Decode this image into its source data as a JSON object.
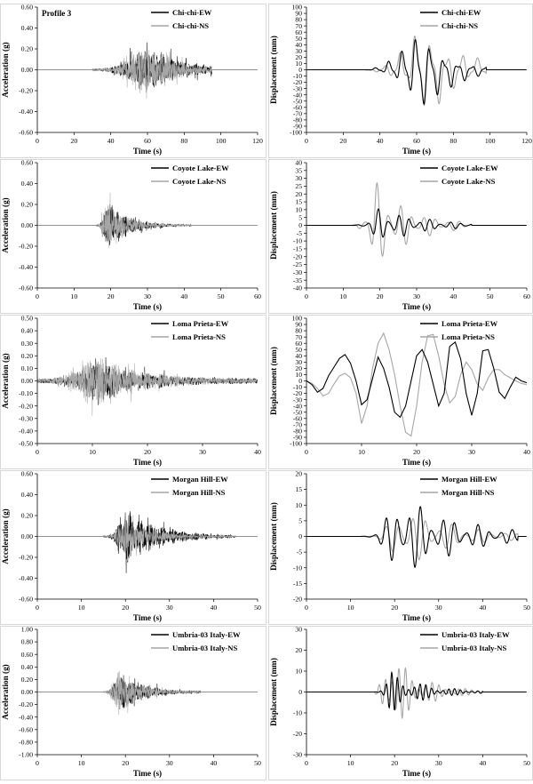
{
  "figure": {
    "panel_label": "Profile 3",
    "xlabel": "Time (s)",
    "ylabel_acc": "Acceleration (g)",
    "ylabel_disp": "Displacement (mm)",
    "colors": {
      "ew": "#000000",
      "ns": "#a6a6a6",
      "axis": "#000000",
      "frame": "#bfbfbf"
    }
  },
  "chart_data": [
    {
      "type": "line",
      "row": 0,
      "kind": "acceleration",
      "xlim": [
        0,
        120
      ],
      "xticks": [
        0,
        20,
        40,
        60,
        80,
        100,
        120
      ],
      "ylim": [
        -0.6,
        0.6
      ],
      "yticks": [
        -0.6,
        -0.4,
        -0.2,
        0.0,
        0.2,
        0.4,
        0.6
      ],
      "ytick_decimals": 2,
      "xlabel": "Time (s)",
      "ylabel": "Acceleration (g)",
      "panel_label": "Profile 3",
      "legend": "top-right",
      "series": [
        {
          "name": "Chi-chi-EW",
          "color": "#000000",
          "shape": "acc",
          "start": 30,
          "end": 95,
          "peak_time": 58,
          "rise": 16,
          "decay": 20,
          "amp": 0.44,
          "freq": 1.4,
          "noise": 0.01,
          "seed": 11
        },
        {
          "name": "Chi-chi-NS",
          "color": "#a6a6a6",
          "shape": "acc",
          "start": 30,
          "end": 95,
          "peak_time": 58,
          "rise": 14,
          "decay": 18,
          "amp": 0.48,
          "freq": 1.6,
          "noise": 0.01,
          "seed": 23
        }
      ]
    },
    {
      "type": "line",
      "row": 0,
      "kind": "displacement",
      "xlim": [
        0,
        120
      ],
      "xticks": [
        0,
        20,
        40,
        60,
        80,
        100,
        120
      ],
      "ylim": [
        -100,
        100
      ],
      "yticks": [
        -100,
        -90,
        -80,
        -70,
        -60,
        -50,
        -40,
        -30,
        -20,
        -10,
        0,
        10,
        20,
        30,
        40,
        50,
        60,
        70,
        80,
        90,
        100
      ],
      "ytick_decimals": 0,
      "xlabel": "Time (s)",
      "ylabel": "Displacement (mm)",
      "legend": "top-right",
      "series": [
        {
          "name": "Chi-chi-EW",
          "color": "#000000",
          "shape": "disp",
          "start": 30,
          "end": 98,
          "peak_time": 62,
          "rise": 18,
          "decay": 16,
          "amp": 80,
          "period": 7.5,
          "seed": 31
        },
        {
          "name": "Chi-chi-NS",
          "color": "#a6a6a6",
          "shape": "disp",
          "start": 30,
          "end": 98,
          "peak_time": 64,
          "rise": 16,
          "decay": 20,
          "amp": 82,
          "period": 8.5,
          "seed": 37
        }
      ]
    },
    {
      "type": "line",
      "row": 1,
      "kind": "acceleration",
      "xlim": [
        0,
        60
      ],
      "xticks": [
        0,
        10,
        20,
        30,
        40,
        50,
        60
      ],
      "ylim": [
        -0.6,
        0.6
      ],
      "yticks": [
        -0.6,
        -0.4,
        -0.2,
        0.0,
        0.2,
        0.4,
        0.6
      ],
      "ytick_decimals": 2,
      "xlabel": "Time (s)",
      "ylabel": "Acceleration (g)",
      "legend": "top-right",
      "series": [
        {
          "name": "Coyote Lake-EW",
          "color": "#000000",
          "shape": "acc",
          "start": 16,
          "end": 42,
          "peak_time": 19,
          "rise": 1.5,
          "decay": 6,
          "amp": 0.46,
          "freq": 3.2,
          "noise": 0.005,
          "seed": 41
        },
        {
          "name": "Coyote Lake-NS",
          "color": "#a6a6a6",
          "shape": "acc",
          "start": 16,
          "end": 42,
          "peak_time": 18.5,
          "rise": 1.4,
          "decay": 5.5,
          "amp": 0.5,
          "freq": 3.6,
          "noise": 0.005,
          "seed": 43
        }
      ]
    },
    {
      "type": "line",
      "row": 1,
      "kind": "displacement",
      "xlim": [
        0,
        60
      ],
      "xticks": [
        0,
        10,
        20,
        30,
        40,
        50,
        60
      ],
      "ylim": [
        -40,
        40
      ],
      "yticks": [
        -40,
        -35,
        -30,
        -25,
        -20,
        -15,
        -10,
        -5,
        0,
        5,
        10,
        15,
        20,
        25,
        30,
        35,
        40
      ],
      "ytick_decimals": 0,
      "xlabel": "Time (s)",
      "ylabel": "Displacement (mm)",
      "legend": "top-right",
      "series": [
        {
          "name": "Coyote Lake-EW",
          "color": "#000000",
          "shape": "disp",
          "start": 12,
          "end": 45,
          "peak_time": 20,
          "rise": 3,
          "decay": 12,
          "amp": 12,
          "period": 2.8,
          "seed": 47
        },
        {
          "name": "Coyote Lake-NS",
          "color": "#a6a6a6",
          "shape": "disp",
          "start": 12,
          "end": 45,
          "peak_time": 18.5,
          "rise": 2.5,
          "decay": 10,
          "amp": 30,
          "period": 3.2,
          "seed": 53
        }
      ]
    },
    {
      "type": "line",
      "row": 2,
      "kind": "acceleration",
      "xlim": [
        0,
        40
      ],
      "xticks": [
        0,
        10,
        20,
        30,
        40
      ],
      "ylim": [
        -0.5,
        0.5
      ],
      "yticks": [
        -0.5,
        -0.4,
        -0.3,
        -0.2,
        -0.1,
        0.0,
        0.1,
        0.2,
        0.3,
        0.4,
        0.5
      ],
      "ytick_decimals": 2,
      "xlabel": "Time (s)",
      "ylabel": "Acceleration (g)",
      "legend": "top-right",
      "series": [
        {
          "name": "Loma Prieta-EW",
          "color": "#000000",
          "shape": "acc",
          "start": 0,
          "end": 40,
          "peak_time": 11,
          "rise": 3.5,
          "decay": 9,
          "amp": 0.3,
          "freq": 2.0,
          "noise": 0.018,
          "seed": 59
        },
        {
          "name": "Loma Prieta-NS",
          "color": "#a6a6a6",
          "shape": "acc",
          "start": 0,
          "end": 40,
          "peak_time": 10,
          "rise": 3.0,
          "decay": 8,
          "amp": 0.42,
          "freq": 2.3,
          "noise": 0.018,
          "seed": 61
        }
      ]
    },
    {
      "type": "line",
      "row": 2,
      "kind": "displacement",
      "xlim": [
        0,
        40
      ],
      "xticks": [
        0,
        10,
        20,
        30,
        40
      ],
      "ylim": [
        -100,
        100
      ],
      "yticks": [
        -100,
        -90,
        -80,
        -70,
        -60,
        -50,
        -40,
        -30,
        -20,
        -10,
        0,
        10,
        20,
        30,
        40,
        50,
        60,
        70,
        80,
        90,
        100
      ],
      "ytick_decimals": 0,
      "xlabel": "Time (s)",
      "ylabel": "Displacement (mm)",
      "legend": "top-right",
      "series": [
        {
          "name": "Loma Prieta-EW",
          "color": "#000000",
          "shape": "wave",
          "points": [
            [
              0,
              0
            ],
            [
              1,
              -6
            ],
            [
              2,
              -18
            ],
            [
              3,
              -12
            ],
            [
              4,
              8
            ],
            [
              5,
              22
            ],
            [
              6,
              36
            ],
            [
              7,
              42
            ],
            [
              8,
              28
            ],
            [
              9,
              0
            ],
            [
              10,
              -38
            ],
            [
              11,
              -30
            ],
            [
              12,
              4
            ],
            [
              13,
              38
            ],
            [
              14,
              20
            ],
            [
              15,
              -10
            ],
            [
              16,
              -50
            ],
            [
              17,
              -58
            ],
            [
              18,
              -40
            ],
            [
              19,
              0
            ],
            [
              20,
              40
            ],
            [
              21,
              50
            ],
            [
              22,
              30
            ],
            [
              23,
              -5
            ],
            [
              24,
              -40
            ],
            [
              25,
              -20
            ],
            [
              26,
              55
            ],
            [
              27,
              62
            ],
            [
              28,
              35
            ],
            [
              29,
              -20
            ],
            [
              30,
              -55
            ],
            [
              31,
              -20
            ],
            [
              32,
              48
            ],
            [
              33,
              50
            ],
            [
              34,
              20
            ],
            [
              35,
              -18
            ],
            [
              36,
              -28
            ],
            [
              37,
              -10
            ],
            [
              38,
              6
            ],
            [
              39,
              0
            ],
            [
              40,
              -3
            ]
          ]
        },
        {
          "name": "Loma Prieta-NS",
          "color": "#a6a6a6",
          "shape": "wave",
          "points": [
            [
              0,
              0
            ],
            [
              1,
              -4
            ],
            [
              2,
              -12
            ],
            [
              3,
              -24
            ],
            [
              4,
              -20
            ],
            [
              5,
              -5
            ],
            [
              6,
              8
            ],
            [
              7,
              12
            ],
            [
              8,
              5
            ],
            [
              9,
              -20
            ],
            [
              10,
              -68
            ],
            [
              11,
              -40
            ],
            [
              12,
              20
            ],
            [
              13,
              60
            ],
            [
              14,
              76
            ],
            [
              15,
              50
            ],
            [
              16,
              10
            ],
            [
              17,
              -40
            ],
            [
              18,
              -82
            ],
            [
              19,
              -88
            ],
            [
              20,
              -40
            ],
            [
              21,
              30
            ],
            [
              22,
              72
            ],
            [
              23,
              74
            ],
            [
              24,
              40
            ],
            [
              25,
              -5
            ],
            [
              26,
              -35
            ],
            [
              27,
              -25
            ],
            [
              28,
              10
            ],
            [
              29,
              30
            ],
            [
              30,
              18
            ],
            [
              31,
              -5
            ],
            [
              32,
              -15
            ],
            [
              33,
              5
            ],
            [
              34,
              18
            ],
            [
              35,
              18
            ],
            [
              36,
              10
            ],
            [
              37,
              5
            ],
            [
              38,
              0
            ],
            [
              39,
              -4
            ],
            [
              40,
              -6
            ]
          ]
        }
      ]
    },
    {
      "type": "line",
      "row": 3,
      "kind": "acceleration",
      "xlim": [
        0,
        50
      ],
      "xticks": [
        0,
        10,
        20,
        30,
        40,
        50
      ],
      "ylim": [
        -0.6,
        0.6
      ],
      "yticks": [
        -0.6,
        -0.4,
        -0.2,
        0.0,
        0.2,
        0.4,
        0.6
      ],
      "ytick_decimals": 2,
      "xlabel": "Time (s)",
      "ylabel": "Acceleration (g)",
      "legend": "top-right",
      "series": [
        {
          "name": "Morgan Hill-EW",
          "color": "#000000",
          "shape": "acc",
          "start": 15,
          "end": 45,
          "peak_time": 20,
          "rise": 2.0,
          "decay": 8,
          "amp": 0.5,
          "freq": 2.5,
          "noise": 0.006,
          "seed": 67
        },
        {
          "name": "Morgan Hill-NS",
          "color": "#a6a6a6",
          "shape": "acc",
          "start": 15,
          "end": 45,
          "peak_time": 19.5,
          "rise": 2.0,
          "decay": 7,
          "amp": 0.34,
          "freq": 2.9,
          "noise": 0.006,
          "seed": 71
        }
      ]
    },
    {
      "type": "line",
      "row": 3,
      "kind": "displacement",
      "xlim": [
        0,
        50
      ],
      "xticks": [
        0,
        10,
        20,
        30,
        40,
        50
      ],
      "ylim": [
        -20,
        20
      ],
      "yticks": [
        -20,
        -15,
        -10,
        -5,
        0,
        5,
        10,
        15,
        20
      ],
      "ytick_decimals": 0,
      "xlabel": "Time (s)",
      "ylabel": "Displacement (mm)",
      "legend": "top-right",
      "series": [
        {
          "name": "Morgan Hill-EW",
          "color": "#000000",
          "shape": "disp",
          "start": 12,
          "end": 48,
          "peak_time": 21,
          "rise": 3.5,
          "decay": 14,
          "amp": 14,
          "period": 2.6,
          "seed": 73
        },
        {
          "name": "Morgan Hill-NS",
          "color": "#a6a6a6",
          "shape": "disp",
          "start": 12,
          "end": 48,
          "peak_time": 22,
          "rise": 3.5,
          "decay": 12,
          "amp": 10,
          "period": 3.0,
          "seed": 79
        }
      ]
    },
    {
      "type": "line",
      "row": 4,
      "kind": "acceleration",
      "xlim": [
        0,
        50
      ],
      "xticks": [
        0,
        10,
        20,
        30,
        40,
        50
      ],
      "ylim": [
        -1.0,
        1.0
      ],
      "yticks": [
        -1.0,
        -0.8,
        -0.6,
        -0.4,
        -0.2,
        0.0,
        0.2,
        0.4,
        0.6,
        0.8,
        1.0
      ],
      "ytick_decimals": 2,
      "xlabel": "Time (s)",
      "ylabel": "Acceleration (g)",
      "legend": "top-right",
      "series": [
        {
          "name": "Umbria-03 Italy-EW",
          "color": "#000000",
          "shape": "acc",
          "start": 15,
          "end": 37,
          "peak_time": 18.5,
          "rise": 1.8,
          "decay": 6,
          "amp": 0.6,
          "freq": 3.3,
          "noise": 0.006,
          "seed": 83
        },
        {
          "name": "Umbria-03 Italy-NS",
          "color": "#a6a6a6",
          "shape": "acc",
          "start": 15,
          "end": 37,
          "peak_time": 18,
          "rise": 1.6,
          "decay": 5,
          "amp": 0.74,
          "freq": 3.8,
          "noise": 0.006,
          "seed": 89
        }
      ]
    },
    {
      "type": "line",
      "row": 4,
      "kind": "displacement",
      "xlim": [
        0,
        50
      ],
      "xticks": [
        0,
        10,
        20,
        30,
        40,
        50
      ],
      "ylim": [
        -30,
        30
      ],
      "yticks": [
        -30,
        -20,
        -10,
        0,
        10,
        20,
        30
      ],
      "ytick_decimals": 0,
      "xlabel": "Time (s)",
      "ylabel": "Displacement (mm)",
      "legend": "top-right",
      "series": [
        {
          "name": "Umbria-03 Italy-EW",
          "color": "#000000",
          "shape": "disp",
          "start": 15,
          "end": 40,
          "peak_time": 19,
          "rise": 2,
          "decay": 8,
          "amp": 10,
          "period": 1.3,
          "seed": 97
        },
        {
          "name": "Umbria-03 Italy-NS",
          "color": "#a6a6a6",
          "shape": "disp",
          "start": 15,
          "end": 40,
          "peak_time": 18,
          "rise": 1.8,
          "decay": 7,
          "amp": 22,
          "period": 1.5,
          "seed": 101
        }
      ]
    }
  ]
}
